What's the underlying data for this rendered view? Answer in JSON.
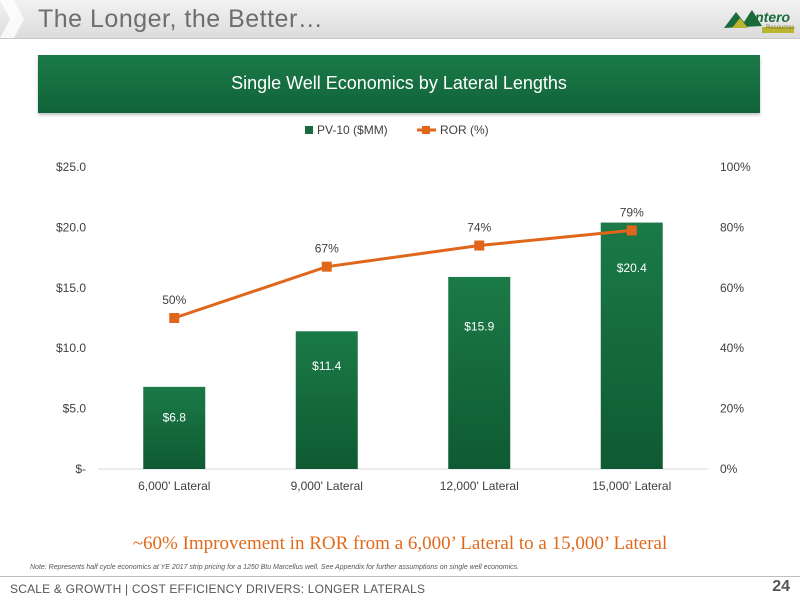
{
  "header": {
    "title": "The Longer, the Better…",
    "logo_text": "Antero",
    "logo_sub": "Resources"
  },
  "chart_data": {
    "type": "bar",
    "title": "Single Well Economics by Lateral Lengths",
    "categories": [
      "6,000' Lateral",
      "9,000' Lateral",
      "12,000' Lateral",
      "15,000' Lateral"
    ],
    "series": [
      {
        "name": "PV-10 ($MM)",
        "type": "bar",
        "axis": "left",
        "values": [
          6.8,
          11.4,
          15.9,
          20.4
        ],
        "labels": [
          "$6.8",
          "$11.4",
          "$15.9",
          "$20.4"
        ],
        "color": "#156b3d"
      },
      {
        "name": "ROR (%)",
        "type": "line",
        "axis": "right",
        "values": [
          50,
          67,
          74,
          79
        ],
        "labels": [
          "50%",
          "67%",
          "74%",
          "79%"
        ],
        "color": "#e0661b"
      }
    ],
    "y_left": {
      "lim": [
        0,
        25
      ],
      "ticks": [
        0,
        5,
        10,
        15,
        20,
        25
      ],
      "tick_labels": [
        "$-",
        "$5.0",
        "$10.0",
        "$15.0",
        "$20.0",
        "$25.0"
      ]
    },
    "y_right": {
      "lim": [
        0,
        100
      ],
      "ticks": [
        0,
        20,
        40,
        60,
        80,
        100
      ],
      "tick_labels": [
        "0%",
        "20%",
        "40%",
        "60%",
        "80%",
        "100%"
      ]
    },
    "legend": "top-center",
    "grid": false
  },
  "callout": "~60% Improvement in ROR from a 6,000’ Lateral to a 15,000’ Lateral",
  "note": "Note: Represents half cycle economics at YE 2017 strip pricing for a 1250 Btu Marcellus well.  See Appendix for further assumptions on single well economics.",
  "footer": {
    "text": "SCALE & GROWTH | COST EFFICIENCY DRIVERS: LONGER LATERALS",
    "page": "24"
  },
  "colors": {
    "bar": "#156b3d",
    "line": "#e0661b",
    "banner": "#17723f",
    "callout": "#e06a1b"
  }
}
